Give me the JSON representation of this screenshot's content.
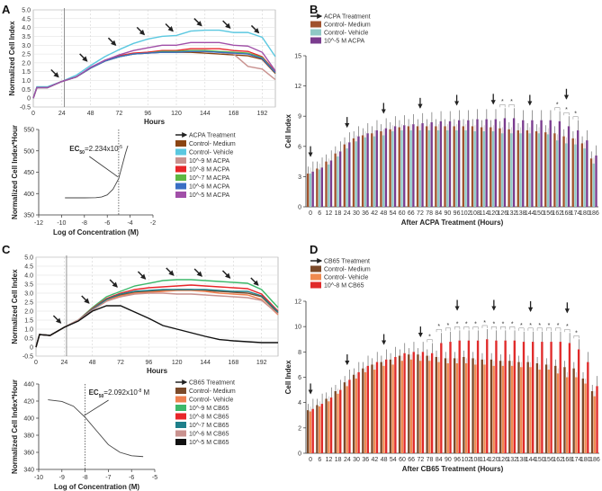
{
  "panels": [
    "A",
    "B",
    "C",
    "D"
  ],
  "chart_data": [
    {
      "id": "A-line",
      "type": "line",
      "panel": "A",
      "xlabel": "Hours",
      "ylabel": "Normalized Cell Index",
      "xlim": [
        0,
        203
      ],
      "ylim": [
        -0.5,
        5.0
      ],
      "xticks": [
        0,
        24,
        48,
        72,
        96,
        120,
        144,
        168,
        192
      ],
      "yticks": [
        -0.5,
        0,
        0.5,
        1.0,
        1.5,
        2.0,
        2.5,
        3.0,
        3.5,
        4.0,
        4.5,
        5.0
      ],
      "ytick_labels": [
        "-0.5",
        "0",
        "0.5",
        "1.0",
        "1.5",
        "2.0",
        "2.5",
        "3.0",
        "3.5",
        "4.0",
        "4.5",
        "5.0"
      ],
      "grid": true,
      "treatment_start": 26,
      "treatment_arrows": [
        24,
        48,
        72,
        96,
        120,
        144,
        168,
        192
      ],
      "x": [
        0,
        3,
        12,
        24,
        36,
        48,
        60,
        72,
        84,
        96,
        108,
        120,
        132,
        144,
        156,
        168,
        180,
        192,
        203
      ],
      "series": [
        {
          "name": "Control- Medium",
          "color": "#8B4513",
          "values": [
            0,
            0.6,
            0.6,
            0.95,
            1.2,
            1.7,
            2.1,
            2.35,
            2.5,
            2.55,
            2.6,
            2.6,
            2.6,
            2.55,
            2.5,
            2.45,
            2.4,
            2.2,
            1.4
          ]
        },
        {
          "name": "Control- Vehicle",
          "color": "#5BC8E0",
          "values": [
            0,
            0.65,
            0.65,
            0.95,
            1.3,
            1.85,
            2.35,
            2.75,
            3.1,
            3.35,
            3.5,
            3.55,
            3.8,
            3.85,
            3.85,
            3.72,
            3.72,
            3.45,
            2.35
          ]
        },
        {
          "name": "10^-9 M ACPA",
          "color": "#C9928F",
          "values": [
            0,
            0.6,
            0.6,
            0.95,
            1.2,
            1.7,
            2.1,
            2.35,
            2.5,
            2.6,
            2.65,
            2.65,
            2.65,
            2.65,
            2.6,
            2.5,
            1.8,
            1.65,
            1.05
          ]
        },
        {
          "name": "10^-8 M ACPA",
          "color": "#E8262A",
          "values": [
            0,
            0.6,
            0.6,
            0.95,
            1.2,
            1.7,
            2.15,
            2.4,
            2.55,
            2.6,
            2.7,
            2.7,
            2.8,
            2.8,
            2.8,
            2.7,
            2.65,
            2.35,
            1.5
          ]
        },
        {
          "name": "10^-7 M ACPA",
          "color": "#5DB843",
          "values": [
            0,
            0.6,
            0.6,
            0.95,
            1.2,
            1.7,
            2.1,
            2.35,
            2.5,
            2.55,
            2.65,
            2.65,
            2.7,
            2.7,
            2.65,
            2.6,
            2.55,
            2.3,
            1.45
          ]
        },
        {
          "name": "10^-6 M ACPA",
          "color": "#3A6FC4",
          "values": [
            0,
            0.6,
            0.6,
            0.95,
            1.2,
            1.7,
            2.1,
            2.35,
            2.5,
            2.55,
            2.6,
            2.6,
            2.65,
            2.65,
            2.6,
            2.55,
            2.5,
            2.25,
            1.45
          ]
        },
        {
          "name": "10^-5 M ACPA",
          "color": "#A14FA8",
          "values": [
            0,
            0.6,
            0.6,
            0.95,
            1.2,
            1.75,
            2.15,
            2.45,
            2.7,
            2.85,
            3.0,
            3.0,
            3.15,
            3.15,
            3.15,
            3.0,
            2.95,
            2.6,
            1.55
          ]
        }
      ],
      "legend": {
        "arrow_label": "ACPA Treatment",
        "placement": "below-right"
      }
    },
    {
      "id": "A-dose",
      "type": "line",
      "panel": "A",
      "xlabel": "Log of Concentration (M)",
      "ylabel": "Normalized Cell Index*Hour",
      "xlim": [
        -12,
        -2
      ],
      "ylim": [
        350,
        550
      ],
      "xticks": [
        -12,
        -10,
        -8,
        -6,
        -4,
        -2
      ],
      "yticks": [
        350,
        400,
        450,
        500,
        550
      ],
      "ec50_log": -5,
      "ec50_text": "EC50=2.234x10-5",
      "ec50_prefix": "EC",
      "ec50_sub": "50",
      "ec50_value": "=2.234x10",
      "ec50_exp": "-5",
      "ec50_unit": "",
      "x": [
        -9.7,
        -8,
        -7,
        -6.5,
        -6,
        -5.5,
        -5,
        -4.7,
        -4.4,
        -4.2
      ],
      "y": [
        390,
        390,
        390.5,
        392,
        397,
        410,
        435,
        465,
        495,
        512
      ]
    },
    {
      "id": "B-bar",
      "type": "bar",
      "panel": "B",
      "xlabel": "After ACPA Treatment (Hours)",
      "ylabel": "Cell Index",
      "ylim": [
        0,
        15
      ],
      "yticks": [
        0,
        3,
        6,
        9,
        12,
        15
      ],
      "categories": [
        "0",
        "6",
        "12",
        "18",
        "24",
        "30",
        "36",
        "42",
        "48",
        "54",
        "60",
        "66",
        "72",
        "78",
        "84",
        "90",
        "96",
        "102",
        "108",
        "114",
        "120",
        "126",
        "132",
        "138",
        "144",
        "150",
        "156",
        "162",
        "168",
        "174",
        "180",
        "186"
      ],
      "series": [
        {
          "name": "Control- Medium",
          "color": "#A0522D",
          "error": 0.7,
          "values": [
            3.3,
            3.8,
            4.5,
            5.3,
            6.2,
            6.8,
            7.1,
            7.3,
            7.5,
            7.7,
            7.9,
            8.0,
            8.0,
            8.0,
            8.0,
            8.0,
            8.0,
            8.0,
            8.0,
            7.9,
            7.9,
            7.8,
            7.7,
            7.6,
            7.6,
            7.5,
            7.4,
            7.3,
            7.0,
            6.8,
            6.3,
            4.8
          ]
        },
        {
          "name": "Control- Vehicle",
          "color": "#8FC9C5",
          "error": 0.6,
          "values": [
            3.3,
            3.7,
            4.2,
            5.0,
            5.8,
            6.5,
            6.9,
            7.0,
            7.1,
            7.5,
            7.6,
            7.6,
            7.6,
            7.6,
            7.6,
            7.6,
            7.6,
            7.6,
            7.5,
            7.5,
            7.5,
            7.3,
            7.3,
            7.3,
            7.3,
            7.3,
            7.2,
            6.6,
            6.3,
            6.2,
            5.8,
            4.3
          ]
        },
        {
          "name": "10^-5 M ACPA",
          "color": "#7A3C8E",
          "error": 1.0,
          "values": [
            3.5,
            3.9,
            4.6,
            5.5,
            6.4,
            7.0,
            7.3,
            7.6,
            7.8,
            8.0,
            8.1,
            8.2,
            8.3,
            8.4,
            8.5,
            8.5,
            8.6,
            8.6,
            8.7,
            8.7,
            8.7,
            8.8,
            8.8,
            8.6,
            8.6,
            8.6,
            8.6,
            8.5,
            8.0,
            7.6,
            6.6,
            5.1
          ]
        }
      ],
      "star_label": "*",
      "significant": [
        "126",
        "132",
        "162",
        "168",
        "174"
      ],
      "treatment_arrows": [
        "0",
        "24",
        "48",
        "72",
        "96",
        "120",
        "144",
        "168"
      ],
      "legend": {
        "arrow_label": "ACPA Treatment",
        "placement": "top-left"
      }
    },
    {
      "id": "C-line",
      "type": "line",
      "panel": "C",
      "xlabel": "Hours",
      "ylabel": "Normalized Cell Index",
      "xlim": [
        0,
        206
      ],
      "ylim": [
        -0.5,
        5.0
      ],
      "xticks": [
        0,
        24,
        48,
        72,
        96,
        120,
        144,
        168,
        192
      ],
      "yticks": [
        -0.5,
        0,
        0.5,
        1.0,
        1.5,
        2.0,
        2.5,
        3.0,
        3.5,
        4.0,
        4.5,
        5.0
      ],
      "ytick_labels": [
        "-0.5",
        "0",
        "0.5",
        "1.0",
        "1.5",
        "2.0",
        "2.5",
        "3.0",
        "3.5",
        "4.0",
        "4.5",
        "5.0"
      ],
      "grid": true,
      "treatment_start": 26,
      "treatment_arrows": [
        24,
        48,
        72,
        96,
        120,
        144,
        168,
        192
      ],
      "x": [
        0,
        3,
        12,
        24,
        36,
        48,
        60,
        72,
        84,
        96,
        108,
        120,
        132,
        144,
        156,
        168,
        180,
        192,
        206
      ],
      "series": [
        {
          "name": "Control- Medium",
          "color": "#7B4A2A",
          "values": [
            0,
            0.7,
            0.65,
            1.1,
            1.5,
            2.1,
            2.65,
            2.9,
            3.05,
            3.1,
            3.15,
            3.2,
            3.2,
            3.15,
            3.1,
            3.05,
            3.0,
            2.8,
            1.9
          ]
        },
        {
          "name": "Control- Vehicle",
          "color": "#F08050",
          "values": [
            0,
            0.7,
            0.65,
            1.1,
            1.5,
            2.1,
            2.6,
            2.85,
            3.0,
            3.05,
            3.1,
            3.15,
            3.15,
            3.1,
            3.0,
            2.95,
            2.9,
            2.65,
            1.8
          ]
        },
        {
          "name": "10^-9 M CB65",
          "color": "#3DB86A",
          "values": [
            0,
            0.7,
            0.65,
            1.1,
            1.5,
            2.2,
            2.8,
            3.1,
            3.4,
            3.55,
            3.7,
            3.75,
            3.75,
            3.7,
            3.65,
            3.6,
            3.55,
            3.2,
            2.2
          ]
        },
        {
          "name": "10^-8 M CB65",
          "color": "#E8262A",
          "values": [
            0,
            0.7,
            0.65,
            1.1,
            1.5,
            2.15,
            2.7,
            3.0,
            3.2,
            3.3,
            3.35,
            3.4,
            3.45,
            3.4,
            3.35,
            3.3,
            3.25,
            2.95,
            2.0
          ]
        },
        {
          "name": "10^-7 M CB65",
          "color": "#1E7F8A",
          "values": [
            0,
            0.7,
            0.65,
            1.1,
            1.5,
            2.1,
            2.65,
            2.95,
            3.1,
            3.15,
            3.2,
            3.2,
            3.2,
            3.2,
            3.15,
            3.1,
            3.1,
            2.85,
            1.95
          ]
        },
        {
          "name": "10^-6 M CB65",
          "color": "#C9928F",
          "values": [
            0,
            0.7,
            0.65,
            1.1,
            1.5,
            2.05,
            2.55,
            2.8,
            2.95,
            3.0,
            3.0,
            2.95,
            2.95,
            2.9,
            2.85,
            2.8,
            2.75,
            2.6,
            1.85
          ]
        },
        {
          "name": "10^-5 M CB65",
          "color": "#111111",
          "values": [
            0,
            0.7,
            0.65,
            1.1,
            1.45,
            2.0,
            2.3,
            2.3,
            1.95,
            1.6,
            1.2,
            1.0,
            0.8,
            0.6,
            0.42,
            0.35,
            0.3,
            0.25,
            0.25
          ]
        }
      ],
      "legend": {
        "arrow_label": "CB65 Treatment",
        "placement": "below-right"
      }
    },
    {
      "id": "C-dose",
      "type": "line",
      "panel": "C",
      "xlabel": "Log of Concentration (M)",
      "ylabel": "Normalized Cell Index*Hour",
      "xlim": [
        -10,
        -5
      ],
      "ylim": [
        340,
        440
      ],
      "xticks": [
        -10,
        -9,
        -8,
        -7,
        -6,
        -5
      ],
      "yticks": [
        340,
        360,
        380,
        400,
        420,
        440
      ],
      "ec50_log": -8,
      "ec50_text": "EC50=2.092x10-8 M",
      "ec50_prefix": "EC",
      "ec50_sub": "50",
      "ec50_value": "=2.092x10",
      "ec50_exp": "-8",
      "ec50_unit": " M",
      "x": [
        -9.6,
        -9,
        -8.5,
        -8,
        -7.5,
        -7,
        -6.5,
        -6,
        -5.5
      ],
      "y": [
        421.5,
        419.5,
        414,
        401,
        385,
        369,
        360,
        356,
        355
      ]
    },
    {
      "id": "D-bar",
      "type": "bar",
      "panel": "D",
      "xlabel": "After CB65 Treatment (Hours)",
      "ylabel": "Cell Index",
      "ylim": [
        0,
        12
      ],
      "yticks": [
        0,
        2,
        4,
        6,
        8,
        10,
        12
      ],
      "categories": [
        "0",
        "6",
        "12",
        "18",
        "24",
        "30",
        "36",
        "42",
        "48",
        "54",
        "60",
        "66",
        "72",
        "78",
        "84",
        "90",
        "96",
        "102",
        "108",
        "114",
        "120",
        "126",
        "132",
        "138",
        "144",
        "150",
        "156",
        "162",
        "168",
        "174",
        "180",
        "186"
      ],
      "series": [
        {
          "name": "Control- Medium",
          "color": "#7B4A2A",
          "error": 0.5,
          "values": [
            3.4,
            3.8,
            4.3,
            4.9,
            5.6,
            6.2,
            6.7,
            7.0,
            7.2,
            7.4,
            7.7,
            7.8,
            7.8,
            7.7,
            7.6,
            7.5,
            7.5,
            7.6,
            7.5,
            7.4,
            7.4,
            7.3,
            7.3,
            7.2,
            7.2,
            7.1,
            7.0,
            6.9,
            6.8,
            6.7,
            5.9,
            4.9
          ]
        },
        {
          "name": "Control- Vehicle",
          "color": "#F08A50",
          "error": 0.4,
          "values": [
            3.3,
            3.7,
            4.1,
            4.7,
            5.3,
            5.9,
            6.4,
            6.6,
            6.9,
            7.0,
            7.3,
            7.4,
            7.3,
            7.3,
            7.2,
            7.1,
            7.1,
            7.1,
            7.0,
            7.0,
            6.9,
            6.9,
            6.9,
            6.8,
            6.8,
            6.6,
            6.6,
            6.3,
            6.0,
            6.0,
            5.5,
            4.5
          ]
        },
        {
          "name": "10^-8 M CB65",
          "color": "#E02A2A",
          "error": 0.8,
          "values": [
            3.5,
            3.9,
            4.4,
            5.0,
            5.8,
            6.4,
            6.9,
            7.2,
            7.4,
            7.6,
            7.9,
            8.0,
            8.0,
            7.9,
            8.7,
            8.8,
            8.9,
            8.9,
            8.9,
            9.0,
            8.9,
            8.9,
            8.9,
            8.8,
            8.8,
            8.8,
            8.8,
            8.8,
            8.7,
            8.2,
            7.2,
            5.3
          ]
        }
      ],
      "star_label": "*",
      "significant": [
        "78",
        "84",
        "90",
        "96",
        "102",
        "108",
        "114",
        "120",
        "126",
        "132",
        "138",
        "144",
        "150",
        "156",
        "162",
        "168",
        "174"
      ],
      "treatment_arrows": [
        "0",
        "24",
        "48",
        "72",
        "96",
        "120",
        "144",
        "168"
      ],
      "legend": {
        "arrow_label": "CB65 Treatment",
        "placement": "top-left"
      }
    }
  ]
}
